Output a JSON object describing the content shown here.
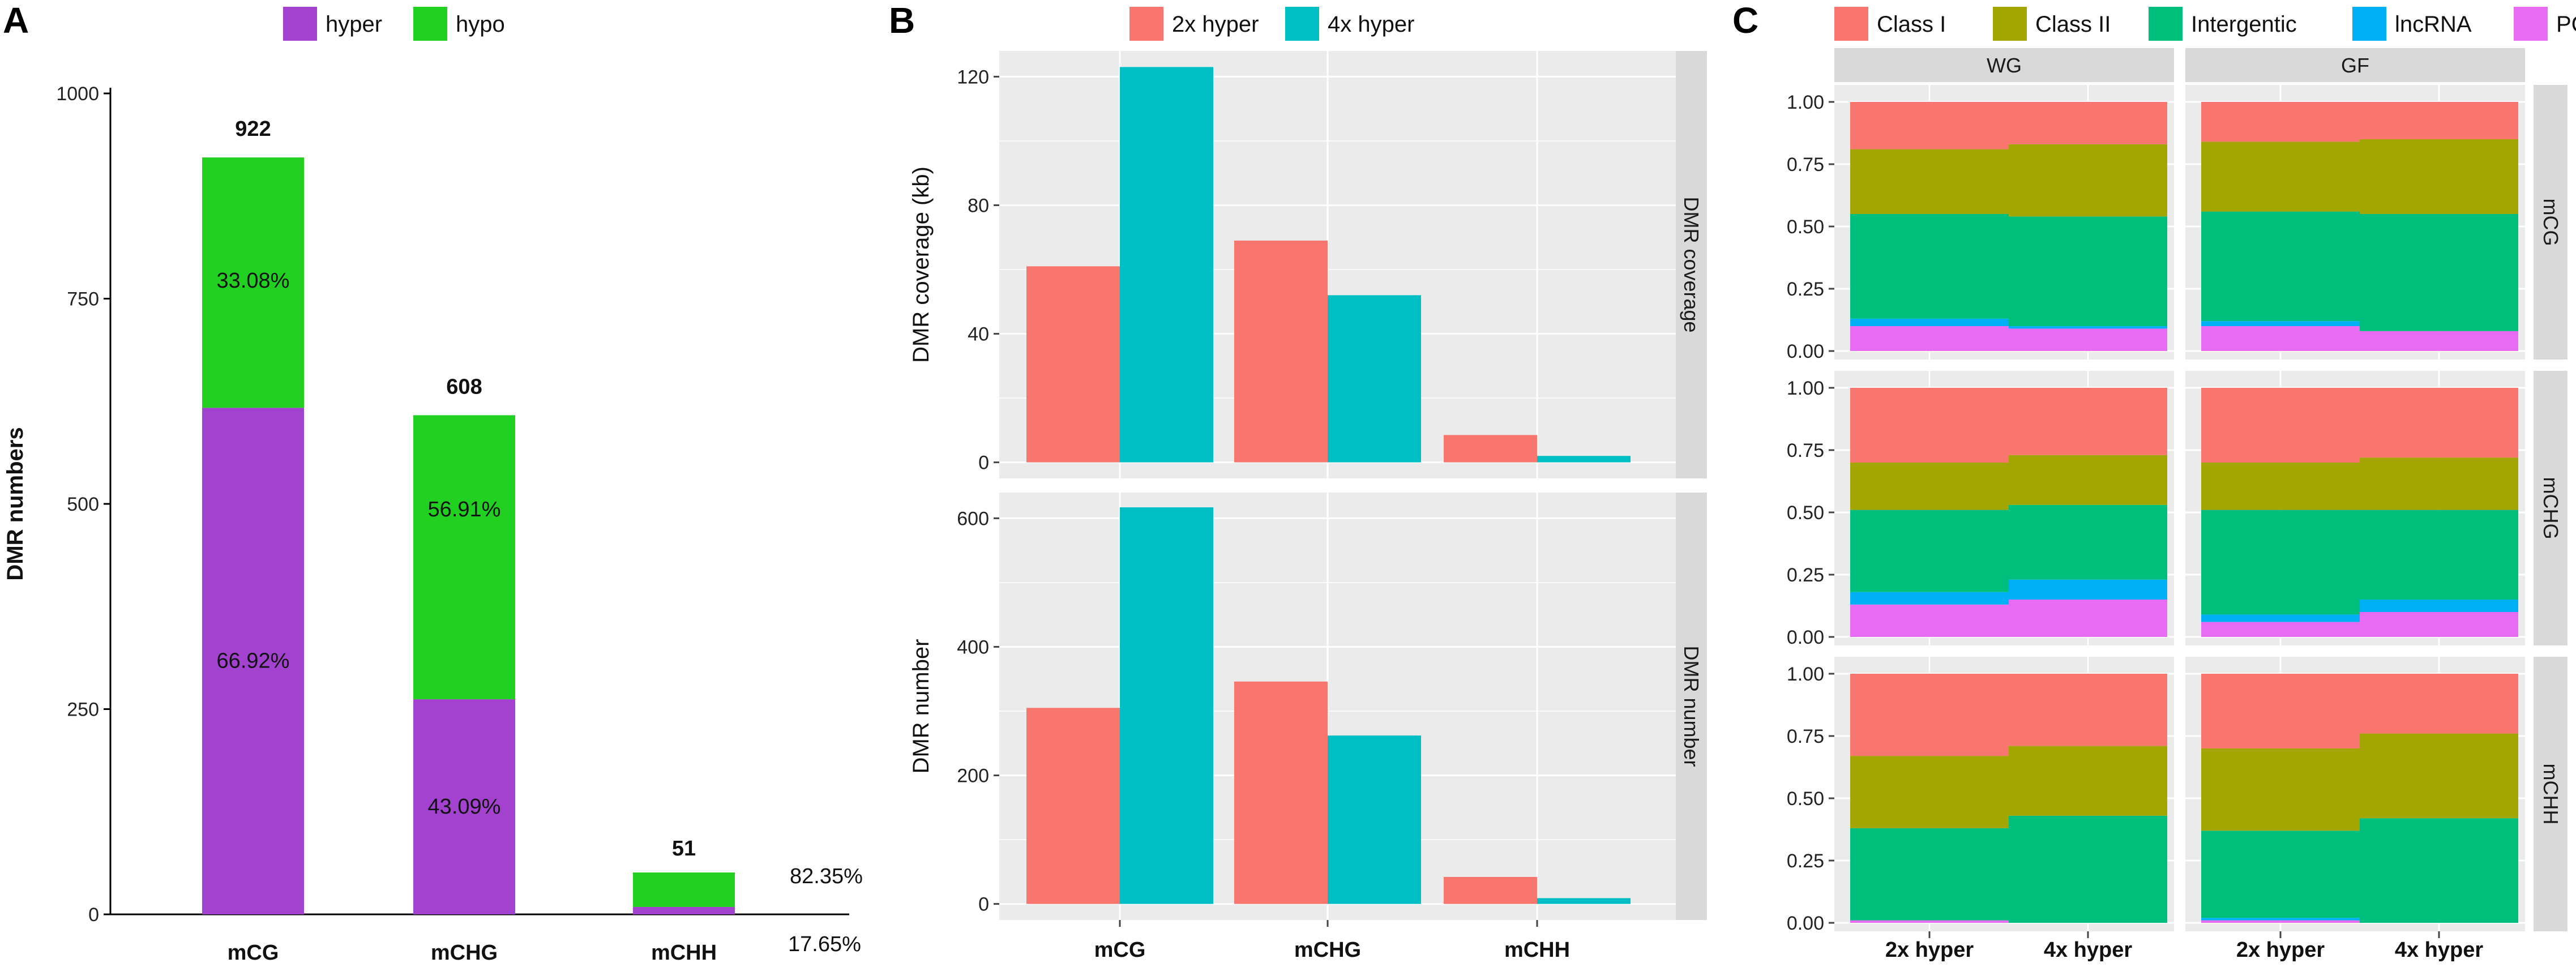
{
  "panels": {
    "a": "A",
    "b": "B",
    "c": "C"
  },
  "colors": {
    "hyper": "#a342cf",
    "hypo": "#22d022",
    "x2": "#f8766d",
    "x4": "#00bfc4",
    "classI": "#f8766d",
    "classII": "#a3a500",
    "intergenic": "#00bf7d",
    "lncRNA": "#00b0f6",
    "pcg": "#e76bf3",
    "panel_bg": "#ebebeb",
    "strip_bg": "#d9d9d9",
    "grid": "#ffffff"
  },
  "chart_data": [
    {
      "id": "A",
      "type": "bar",
      "stacked": true,
      "legend": [
        "hyper",
        "hypo"
      ],
      "ylabel": "DMR numbers",
      "ylim": [
        0,
        1000
      ],
      "yticks": [
        0,
        250,
        500,
        750,
        1000
      ],
      "categories": [
        "mCG",
        "mCHG",
        "mCHH"
      ],
      "series": [
        {
          "name": "hyper",
          "values": [
            617,
            262,
            9
          ]
        },
        {
          "name": "hypo",
          "values": [
            305,
            346,
            42
          ]
        }
      ],
      "totals": [
        "922",
        "608",
        "51"
      ],
      "hyper_labels": [
        "66.92%",
        "43.09%",
        "17.65%"
      ],
      "hypo_labels": [
        "33.08%",
        "56.91%",
        "82.35%"
      ]
    },
    {
      "id": "B",
      "type": "bar",
      "legend": [
        "2x hyper",
        "4x hyper"
      ],
      "categories": [
        "mCG",
        "mCHG",
        "mCHH"
      ],
      "facets": [
        {
          "strip": "DMR coverage",
          "ylabel": "DMR coverage (kb)",
          "ylim": [
            -5,
            128
          ],
          "yticks": [
            0,
            40,
            80,
            120
          ],
          "series": [
            {
              "name": "2x hyper",
              "values": [
                61,
                69,
                8.5
              ]
            },
            {
              "name": "4x hyper",
              "values": [
                123,
                52,
                2
              ]
            }
          ]
        },
        {
          "strip": "DMR number",
          "ylabel": "DMR number",
          "ylim": [
            -25,
            640
          ],
          "yticks": [
            0,
            200,
            400,
            600
          ],
          "series": [
            {
              "name": "2x hyper",
              "values": [
                305,
                346,
                42
              ]
            },
            {
              "name": "4x hyper",
              "values": [
                617,
                262,
                9
              ]
            }
          ]
        }
      ]
    },
    {
      "id": "C",
      "type": "bar",
      "stacked": true,
      "legend": [
        "Class I",
        "Class II",
        "Intergentic",
        "lncRNA",
        "PCG"
      ],
      "col_strips": [
        "WG",
        "GF"
      ],
      "row_strips": [
        "mCG",
        "mCHG",
        "mCHH"
      ],
      "x": [
        "2x hyper",
        "4x hyper"
      ],
      "ylim": [
        0,
        1
      ],
      "yticks": [
        "0.00",
        "0.25",
        "0.50",
        "0.75",
        "1.00"
      ],
      "note": "cumulative boundaries bottom-to-top: PCG, lncRNA, Intergentic, Class II, Class I (top = 1.00)",
      "cells": [
        [
          {
            "bars": [
              {
                "pcg": 0.1,
                "lnc": 0.13,
                "inter": 0.55,
                "c2": 0.81
              },
              {
                "pcg": 0.09,
                "lnc": 0.1,
                "inter": 0.54,
                "c2": 0.83
              }
            ]
          },
          {
            "bars": [
              {
                "pcg": 0.1,
                "lnc": 0.12,
                "inter": 0.56,
                "c2": 0.84
              },
              {
                "pcg": 0.08,
                "lnc": 0.08,
                "inter": 0.55,
                "c2": 0.85
              }
            ]
          }
        ],
        [
          {
            "bars": [
              {
                "pcg": 0.13,
                "lnc": 0.18,
                "inter": 0.51,
                "c2": 0.7
              },
              {
                "pcg": 0.15,
                "lnc": 0.23,
                "inter": 0.53,
                "c2": 0.73
              }
            ]
          },
          {
            "bars": [
              {
                "pcg": 0.06,
                "lnc": 0.09,
                "inter": 0.51,
                "c2": 0.7
              },
              {
                "pcg": 0.1,
                "lnc": 0.15,
                "inter": 0.51,
                "c2": 0.72
              }
            ]
          }
        ],
        [
          {
            "bars": [
              {
                "pcg": 0.01,
                "lnc": 0.01,
                "inter": 0.38,
                "c2": 0.67
              },
              {
                "pcg": 0.0,
                "lnc": 0.0,
                "inter": 0.43,
                "c2": 0.71
              }
            ]
          },
          {
            "bars": [
              {
                "pcg": 0.01,
                "lnc": 0.02,
                "inter": 0.37,
                "c2": 0.7
              },
              {
                "pcg": 0.0,
                "lnc": 0.0,
                "inter": 0.42,
                "c2": 0.76
              }
            ]
          }
        ]
      ]
    }
  ]
}
